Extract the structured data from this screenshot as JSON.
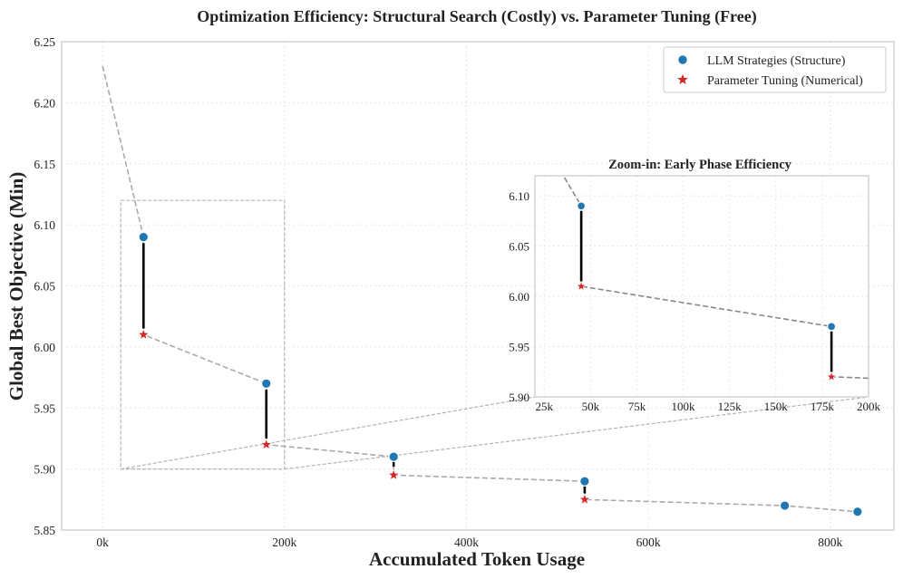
{
  "chart_data": {
    "type": "scatter",
    "title": "Optimization Efficiency: Structural Search (Costly) vs. Parameter Tuning (Free)",
    "xlabel": "Accumulated Token Usage",
    "ylabel": "Global Best Objective (Min)",
    "xlim": [
      -45000,
      870000
    ],
    "ylim": [
      5.85,
      6.25
    ],
    "x_ticks": [
      0,
      200000,
      400000,
      600000,
      800000
    ],
    "x_tick_labels": [
      "0k",
      "200k",
      "400k",
      "600k",
      "800k"
    ],
    "y_ticks": [
      5.85,
      5.9,
      5.95,
      6.0,
      6.05,
      6.1,
      6.15,
      6.2,
      6.25
    ],
    "y_tick_labels": [
      "5.85",
      "5.90",
      "5.95",
      "6.00",
      "6.05",
      "6.10",
      "6.15",
      "6.20",
      "6.25"
    ],
    "grid": true,
    "legend_position": "top-right",
    "series": [
      {
        "name": "LLM Strategies (Structure)",
        "marker": "circle",
        "color": "#1f77b4",
        "x": [
          45000,
          180000,
          320000,
          530000,
          750000,
          830000
        ],
        "y": [
          6.09,
          5.97,
          5.91,
          5.89,
          5.87,
          5.865
        ]
      },
      {
        "name": "Parameter Tuning (Numerical)",
        "marker": "star",
        "color": "#d62728",
        "x": [
          45000,
          180000,
          320000,
          530000
        ],
        "y": [
          6.01,
          5.92,
          5.895,
          5.875
        ]
      }
    ],
    "trajectory": {
      "x": [
        0,
        45000,
        45000,
        180000,
        180000,
        320000,
        320000,
        530000,
        530000,
        750000,
        830000
      ],
      "y": [
        6.23,
        6.09,
        6.01,
        5.97,
        5.92,
        5.91,
        5.895,
        5.89,
        5.875,
        5.87,
        5.865
      ],
      "color": "#aaaaaa",
      "style": "dashed"
    },
    "improvement_segments": [
      {
        "x": 45000,
        "y_from": 6.085,
        "y_to": 6.015
      },
      {
        "x": 180000,
        "y_from": 5.965,
        "y_to": 5.925
      },
      {
        "x": 320000,
        "y_from": 5.907,
        "y_to": 5.902
      },
      {
        "x": 530000,
        "y_from": 5.887,
        "y_to": 5.88
      }
    ],
    "zoom_region": {
      "x_range": [
        20000,
        200000
      ],
      "y_range": [
        5.9,
        6.12
      ]
    },
    "inset": {
      "title": "Zoom-in: Early Phase Efficiency",
      "xlim": [
        20000,
        200000
      ],
      "ylim": [
        5.9,
        6.12
      ],
      "x_ticks": [
        25000,
        50000,
        75000,
        100000,
        125000,
        150000,
        175000,
        200000
      ],
      "x_tick_labels": [
        "25k",
        "50k",
        "75k",
        "100k",
        "125k",
        "150k",
        "175k",
        "200k"
      ],
      "y_ticks": [
        5.9,
        5.95,
        6.0,
        6.05,
        6.1
      ],
      "y_tick_labels": [
        "5.90",
        "5.95",
        "6.00",
        "6.05",
        "6.10"
      ]
    }
  }
}
